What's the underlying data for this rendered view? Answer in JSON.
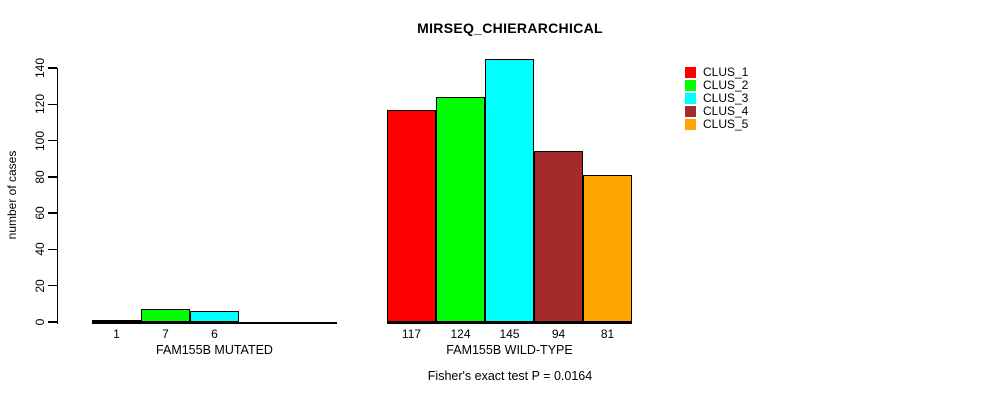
{
  "chart_data": {
    "type": "bar",
    "title": "MIRSEQ_CHIERARCHICAL",
    "ylabel": "number of cases",
    "annotation": "Fisher's exact test P = 0.0164",
    "ylim": [
      0,
      140
    ],
    "yticks": [
      0,
      20,
      40,
      60,
      80,
      100,
      120,
      140
    ],
    "grid": false,
    "legend_position": "right",
    "colors": [
      "#FF0000",
      "#00FF00",
      "#00FFFF",
      "#A52A2A",
      "#FFA500"
    ],
    "series": [
      "CLUS_1",
      "CLUS_2",
      "CLUS_3",
      "CLUS_4",
      "CLUS_5"
    ],
    "groups": [
      {
        "label": "FAM155B MUTATED",
        "values": [
          1,
          7,
          6,
          0,
          0
        ],
        "bar_labels": [
          "1",
          "7",
          "6",
          "",
          ""
        ]
      },
      {
        "label": "FAM155B WILD-TYPE",
        "values": [
          117,
          124,
          145,
          94,
          81
        ],
        "bar_labels": [
          "117",
          "124",
          "145",
          "94",
          "81"
        ]
      }
    ],
    "legend": [
      {
        "label": "CLUS_1",
        "color": "#FF0000"
      },
      {
        "label": "CLUS_2",
        "color": "#00FF00"
      },
      {
        "label": "CLUS_3",
        "color": "#00FFFF"
      },
      {
        "label": "CLUS_4",
        "color": "#A52A2A"
      },
      {
        "label": "CLUS_5",
        "color": "#FFA500"
      }
    ]
  }
}
